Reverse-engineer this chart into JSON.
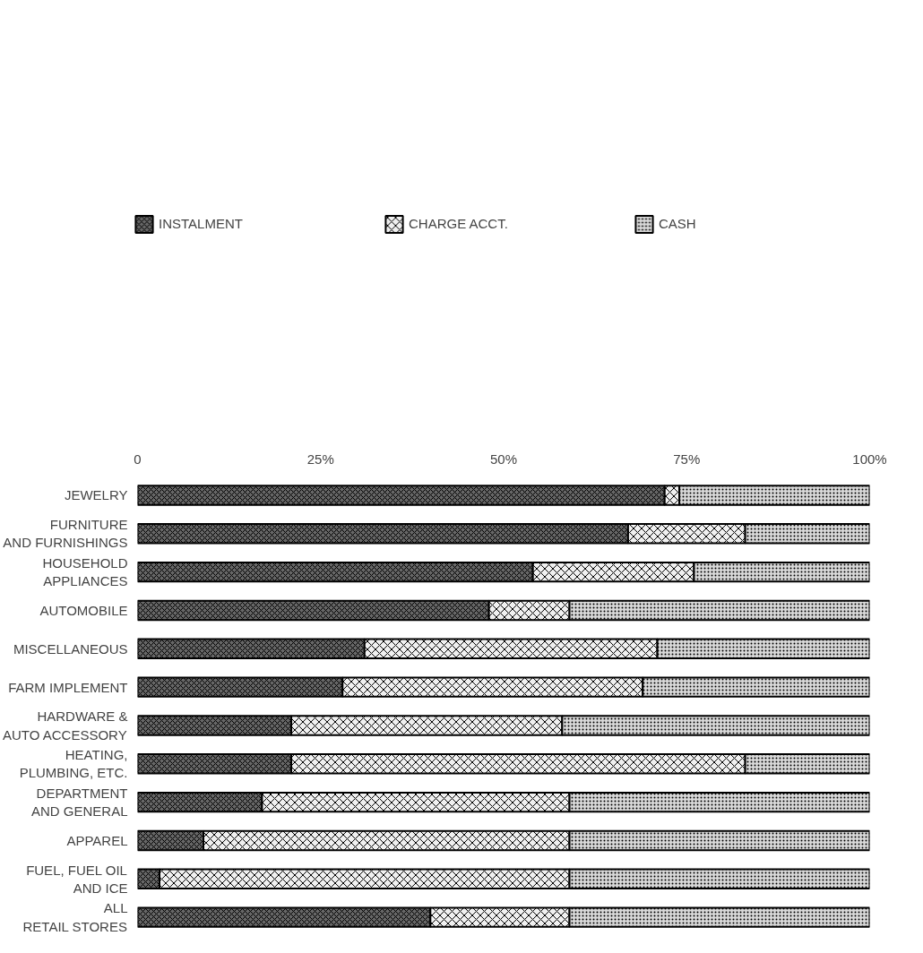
{
  "chart_data": {
    "type": "bar",
    "orientation": "horizontal",
    "stacked": true,
    "categories": [
      "JEWELRY",
      "FURNITURE\nAND FURNISHINGS",
      "HOUSEHOLD\nAPPLIANCES",
      "AUTOMOBILE",
      "MISCELLANEOUS",
      "FARM IMPLEMENT",
      "HARDWARE &\nAUTO ACCESSORY",
      "HEATING,\nPLUMBING, ETC.",
      "DEPARTMENT\nAND GENERAL",
      "APPAREL",
      "FUEL, FUEL OIL\nAND ICE",
      "ALL\nRETAIL STORES"
    ],
    "series": [
      {
        "name": "INSTALMENT",
        "color": "#666666",
        "values": [
          72,
          67,
          54,
          48,
          31,
          28,
          21,
          21,
          17,
          9,
          3,
          40
        ]
      },
      {
        "name": "CHARGE ACCT.",
        "color": "#f0f0f0",
        "values": [
          2,
          16,
          22,
          11,
          40,
          41,
          37,
          62,
          42,
          50,
          56,
          19
        ]
      },
      {
        "name": "CASH",
        "color": "#d9d9d9",
        "values": [
          26,
          17,
          24,
          41,
          29,
          31,
          42,
          17,
          41,
          41,
          41,
          41
        ]
      }
    ],
    "xlim": [
      0,
      100
    ],
    "xticks": [
      0,
      {
        "value": 25,
        "label": "25%"
      },
      {
        "value": 50,
        "label": "50%"
      },
      {
        "value": 75,
        "label": "75%"
      },
      {
        "value": 100,
        "label": "100%"
      }
    ],
    "grid": false,
    "legend": "top"
  }
}
